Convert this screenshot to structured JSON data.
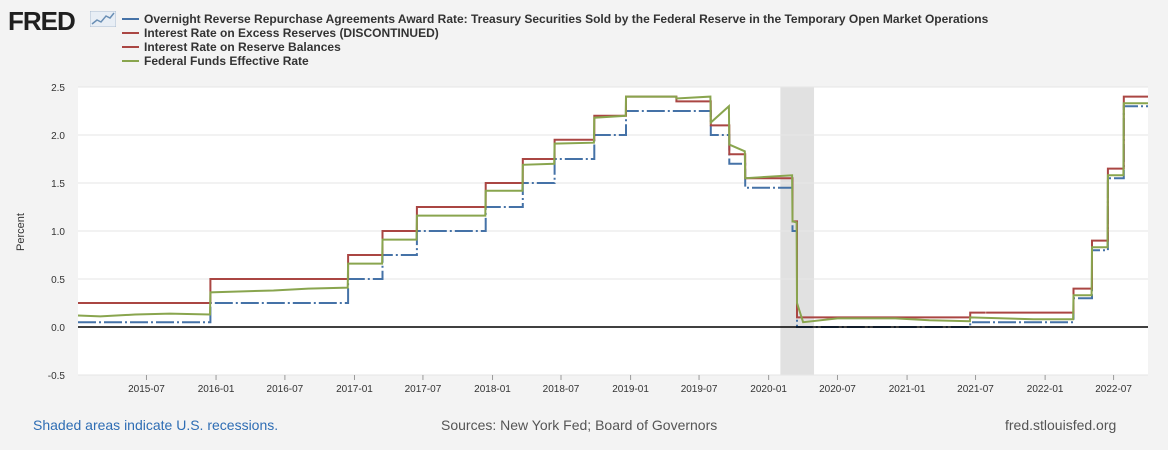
{
  "brand": {
    "logo_text": "FRED",
    "logo_icon": "sparkline-chart-icon"
  },
  "legend": [
    {
      "label": "Overnight Reverse Repurchase Agreements Award Rate: Treasury Securities Sold by the Federal Reserve in the Temporary Open Market Operations",
      "color": "#4572a7"
    },
    {
      "label": "Interest Rate on Excess Reserves (DISCONTINUED)",
      "color": "#aa4643"
    },
    {
      "label": "Interest Rate on Reserve Balances",
      "color": "#aa4643"
    },
    {
      "label": "Federal Funds Effective Rate",
      "color": "#89a54e"
    }
  ],
  "footer": {
    "recession_note": "Shaded areas indicate U.S. recessions.",
    "sources": "Sources: New York Fed; Board of Governors",
    "site": "fred.stlouisfed.org"
  },
  "chart_data": {
    "type": "line",
    "ylabel": "Percent",
    "ylim": [
      -0.5,
      2.5
    ],
    "yticks": [
      "-0.5",
      "0.0",
      "0.5",
      "1.0",
      "1.5",
      "2.0",
      "2.5"
    ],
    "xlim": [
      "2015-01-01",
      "2022-09-30"
    ],
    "xticks": [
      "2015-07",
      "2016-01",
      "2016-07",
      "2017-01",
      "2017-07",
      "2018-01",
      "2018-07",
      "2019-01",
      "2019-07",
      "2020-01",
      "2020-07",
      "2021-01",
      "2021-07",
      "2022-01",
      "2022-07"
    ],
    "grid": "horizontal",
    "recession_shading": [
      {
        "start": "2020-02-01",
        "end": "2020-04-30"
      }
    ],
    "series": [
      {
        "name": "Overnight Reverse Repurchase Agreements Award Rate: Treasury Securities Sold by the Federal Reserve in the Temporary Open Market Operations",
        "color": "#4572a7",
        "dashed": true,
        "points": [
          [
            "2015-01-01",
            0.05
          ],
          [
            "2015-12-17",
            0.05
          ],
          [
            "2015-12-17",
            0.25
          ],
          [
            "2016-12-15",
            0.25
          ],
          [
            "2016-12-15",
            0.5
          ],
          [
            "2017-03-16",
            0.5
          ],
          [
            "2017-03-16",
            0.75
          ],
          [
            "2017-06-15",
            0.75
          ],
          [
            "2017-06-15",
            1.0
          ],
          [
            "2017-12-14",
            1.0
          ],
          [
            "2017-12-14",
            1.25
          ],
          [
            "2018-03-22",
            1.25
          ],
          [
            "2018-03-22",
            1.5
          ],
          [
            "2018-06-14",
            1.5
          ],
          [
            "2018-06-14",
            1.75
          ],
          [
            "2018-09-27",
            1.75
          ],
          [
            "2018-09-27",
            2.0
          ],
          [
            "2018-12-20",
            2.0
          ],
          [
            "2018-12-20",
            2.25
          ],
          [
            "2019-08-01",
            2.25
          ],
          [
            "2019-08-01",
            2.0
          ],
          [
            "2019-09-19",
            2.0
          ],
          [
            "2019-09-19",
            1.7
          ],
          [
            "2019-10-31",
            1.7
          ],
          [
            "2019-10-31",
            1.45
          ],
          [
            "2020-03-04",
            1.45
          ],
          [
            "2020-03-04",
            1.0
          ],
          [
            "2020-03-16",
            1.0
          ],
          [
            "2020-03-16",
            0.0
          ],
          [
            "2021-06-17",
            0.0
          ],
          [
            "2021-06-17",
            0.05
          ],
          [
            "2022-03-17",
            0.05
          ],
          [
            "2022-03-17",
            0.3
          ],
          [
            "2022-05-05",
            0.3
          ],
          [
            "2022-05-05",
            0.8
          ],
          [
            "2022-06-16",
            0.8
          ],
          [
            "2022-06-16",
            1.55
          ],
          [
            "2022-07-28",
            1.55
          ],
          [
            "2022-07-28",
            2.3
          ],
          [
            "2022-09-30",
            2.3
          ]
        ]
      },
      {
        "name": "Interest Rate on Excess Reserves (DISCONTINUED)",
        "color": "#aa4643",
        "dashed": false,
        "points": [
          [
            "2015-01-01",
            0.25
          ],
          [
            "2015-12-17",
            0.25
          ],
          [
            "2015-12-17",
            0.5
          ],
          [
            "2016-12-15",
            0.5
          ],
          [
            "2016-12-15",
            0.75
          ],
          [
            "2017-03-16",
            0.75
          ],
          [
            "2017-03-16",
            1.0
          ],
          [
            "2017-06-15",
            1.0
          ],
          [
            "2017-06-15",
            1.25
          ],
          [
            "2017-12-14",
            1.25
          ],
          [
            "2017-12-14",
            1.5
          ],
          [
            "2018-03-22",
            1.5
          ],
          [
            "2018-03-22",
            1.75
          ],
          [
            "2018-06-14",
            1.75
          ],
          [
            "2018-06-14",
            1.95
          ],
          [
            "2018-09-27",
            1.95
          ],
          [
            "2018-09-27",
            2.2
          ],
          [
            "2018-12-20",
            2.2
          ],
          [
            "2018-12-20",
            2.4
          ],
          [
            "2019-05-02",
            2.4
          ],
          [
            "2019-05-02",
            2.35
          ],
          [
            "2019-08-01",
            2.35
          ],
          [
            "2019-08-01",
            2.1
          ],
          [
            "2019-09-19",
            2.1
          ],
          [
            "2019-09-19",
            1.8
          ],
          [
            "2019-10-31",
            1.8
          ],
          [
            "2019-10-31",
            1.55
          ],
          [
            "2020-03-04",
            1.55
          ],
          [
            "2020-03-04",
            1.1
          ],
          [
            "2020-03-16",
            1.1
          ],
          [
            "2020-03-16",
            0.1
          ],
          [
            "2021-06-17",
            0.1
          ],
          [
            "2021-06-17",
            0.15
          ],
          [
            "2021-07-28",
            0.15
          ]
        ]
      },
      {
        "name": "Interest Rate on Reserve Balances",
        "color": "#aa4643",
        "dashed": false,
        "points": [
          [
            "2021-07-29",
            0.15
          ],
          [
            "2022-03-17",
            0.15
          ],
          [
            "2022-03-17",
            0.4
          ],
          [
            "2022-05-05",
            0.4
          ],
          [
            "2022-05-05",
            0.9
          ],
          [
            "2022-06-16",
            0.9
          ],
          [
            "2022-06-16",
            1.65
          ],
          [
            "2022-07-28",
            1.65
          ],
          [
            "2022-07-28",
            2.4
          ],
          [
            "2022-09-30",
            2.4
          ]
        ]
      },
      {
        "name": "Federal Funds Effective Rate",
        "color": "#89a54e",
        "dashed": false,
        "points": [
          [
            "2015-01-01",
            0.12
          ],
          [
            "2015-03-01",
            0.11
          ],
          [
            "2015-06-01",
            0.13
          ],
          [
            "2015-09-01",
            0.14
          ],
          [
            "2015-12-16",
            0.13
          ],
          [
            "2015-12-17",
            0.36
          ],
          [
            "2016-03-01",
            0.37
          ],
          [
            "2016-06-01",
            0.38
          ],
          [
            "2016-09-01",
            0.4
          ],
          [
            "2016-12-14",
            0.41
          ],
          [
            "2016-12-15",
            0.66
          ],
          [
            "2017-03-15",
            0.66
          ],
          [
            "2017-03-16",
            0.91
          ],
          [
            "2017-06-14",
            0.91
          ],
          [
            "2017-06-15",
            1.16
          ],
          [
            "2017-12-13",
            1.16
          ],
          [
            "2017-12-14",
            1.42
          ],
          [
            "2018-03-21",
            1.42
          ],
          [
            "2018-03-22",
            1.69
          ],
          [
            "2018-06-13",
            1.7
          ],
          [
            "2018-06-14",
            1.91
          ],
          [
            "2018-09-26",
            1.92
          ],
          [
            "2018-09-27",
            2.18
          ],
          [
            "2018-12-19",
            2.2
          ],
          [
            "2018-12-20",
            2.4
          ],
          [
            "2019-05-01",
            2.4
          ],
          [
            "2019-05-02",
            2.38
          ],
          [
            "2019-07-31",
            2.4
          ],
          [
            "2019-08-01",
            2.13
          ],
          [
            "2019-09-18",
            2.3
          ],
          [
            "2019-09-19",
            1.9
          ],
          [
            "2019-10-30",
            1.83
          ],
          [
            "2019-10-31",
            1.55
          ],
          [
            "2020-03-03",
            1.58
          ],
          [
            "2020-03-04",
            1.1
          ],
          [
            "2020-03-15",
            1.09
          ],
          [
            "2020-03-16",
            0.25
          ],
          [
            "2020-04-01",
            0.05
          ],
          [
            "2020-07-01",
            0.09
          ],
          [
            "2020-12-01",
            0.09
          ],
          [
            "2021-03-01",
            0.07
          ],
          [
            "2021-06-16",
            0.06
          ],
          [
            "2021-06-17",
            0.1
          ],
          [
            "2021-12-01",
            0.08
          ],
          [
            "2022-03-16",
            0.08
          ],
          [
            "2022-03-17",
            0.33
          ],
          [
            "2022-05-04",
            0.33
          ],
          [
            "2022-05-05",
            0.83
          ],
          [
            "2022-06-15",
            0.83
          ],
          [
            "2022-06-16",
            1.58
          ],
          [
            "2022-07-27",
            1.58
          ],
          [
            "2022-07-28",
            2.33
          ],
          [
            "2022-09-30",
            2.33
          ]
        ]
      }
    ]
  }
}
